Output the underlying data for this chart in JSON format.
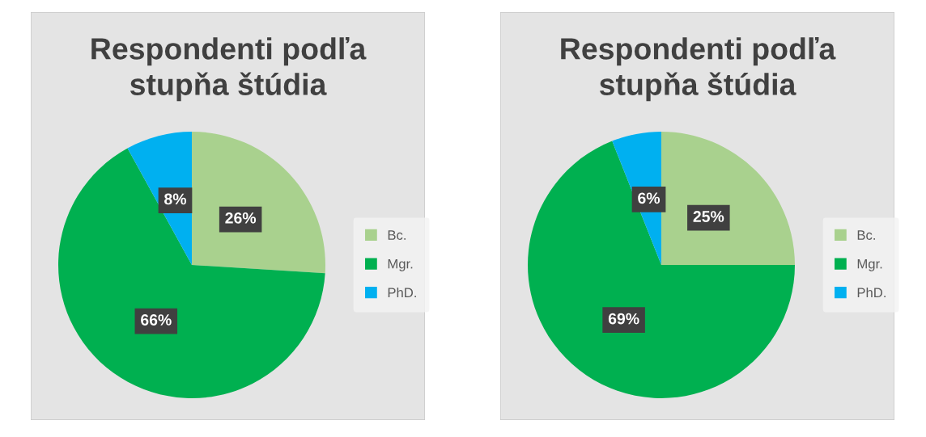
{
  "chart_data": [
    {
      "type": "pie",
      "title": "Respondenti podľa\nstupňa štúdia",
      "categories": [
        "Bc.",
        "Mgr.",
        "PhD."
      ],
      "values": [
        26,
        66,
        8
      ],
      "value_labels": [
        "26%",
        "66%",
        "8%"
      ],
      "colors": [
        "#a9d18e",
        "#00b050",
        "#00b0f0"
      ],
      "legend": "right"
    },
    {
      "type": "pie",
      "title": "Respondenti podľa\nstupňa štúdia",
      "categories": [
        "Bc.",
        "Mgr.",
        "PhD."
      ],
      "values": [
        25,
        69,
        6
      ],
      "value_labels": [
        "25%",
        "69%",
        "6%"
      ],
      "colors": [
        "#a9d18e",
        "#00b050",
        "#00b0f0"
      ],
      "legend": "right"
    }
  ]
}
